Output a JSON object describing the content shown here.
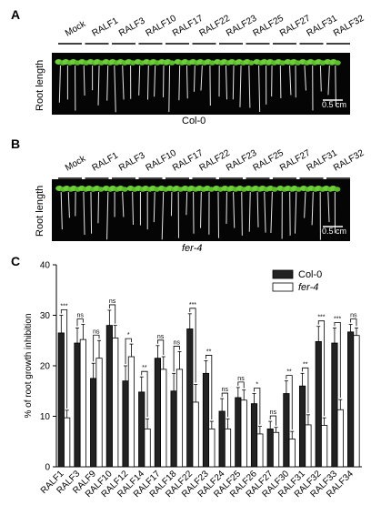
{
  "panels": {
    "a": {
      "label": "A",
      "groups": [
        "Mock",
        "RALF1",
        "RALF3",
        "RALF10",
        "RALF17",
        "RALF22",
        "RALF23",
        "RALF25",
        "RALF27",
        "RALF31",
        "RALF32"
      ],
      "y_label": "Root length",
      "caption": "Col-0",
      "scale": "0.5 cm"
    },
    "b": {
      "label": "B",
      "groups": [
        "Mock",
        "RALF1",
        "RALF3",
        "RALF10",
        "RALF17",
        "RALF22",
        "RALF23",
        "RALF25",
        "RALF27",
        "RALF31",
        "RALF32"
      ],
      "y_label": "Root length",
      "caption": "fer-4",
      "scale": "0.5 cm"
    },
    "c": {
      "label": "C"
    }
  },
  "chart_data": {
    "type": "bar",
    "ylabel": "% of root growth inhibition",
    "ylim": [
      0,
      40
    ],
    "yticks": [
      0,
      10,
      20,
      30,
      40
    ],
    "categories": [
      "RALF1",
      "RALF3",
      "RALF9",
      "RALF10",
      "RALF12",
      "RALF14",
      "RALF17",
      "RALF18",
      "RALF22",
      "RALF23",
      "RALF24",
      "RALF25",
      "RALF26",
      "RALF27",
      "RALF30",
      "RALF31",
      "RALF32",
      "RALF33",
      "RALF34"
    ],
    "series": [
      {
        "name": "Col-0",
        "color": "#222222",
        "values": [
          26.5,
          24.5,
          17.5,
          28,
          17,
          14.8,
          21.5,
          15,
          27.3,
          18.5,
          11,
          13.7,
          12.5,
          7.5,
          14.5,
          16,
          24.8,
          24.5,
          26.7
        ],
        "errors": [
          3.5,
          3.0,
          3.0,
          3.0,
          3.0,
          3.0,
          2.5,
          3.5,
          3.0,
          2.5,
          2.5,
          2.0,
          2.0,
          1.5,
          2.5,
          2.5,
          3.0,
          3.0,
          1.5
        ]
      },
      {
        "name": "fer-4",
        "color": "#ffffff",
        "values": [
          9.7,
          25.2,
          21.5,
          25.5,
          21.8,
          7.5,
          19.3,
          19.3,
          12.8,
          7.5,
          7.5,
          13.2,
          6.5,
          6.8,
          5.5,
          8.3,
          8.2,
          11.3,
          26
        ],
        "errors": [
          1.5,
          3.0,
          3.5,
          2.5,
          2.5,
          2.0,
          2.5,
          3.5,
          3.5,
          1.5,
          2.0,
          2.0,
          1.5,
          1.0,
          1.5,
          2.0,
          1.5,
          2.0,
          1.5
        ]
      }
    ],
    "significance": [
      "***",
      "ns",
      "ns",
      "ns",
      "*",
      "**",
      "ns",
      "ns",
      "***",
      "**",
      "ns",
      "ns",
      "*",
      "ns",
      "**",
      "**",
      "***",
      "***",
      "ns"
    ],
    "legend": "top-right"
  }
}
